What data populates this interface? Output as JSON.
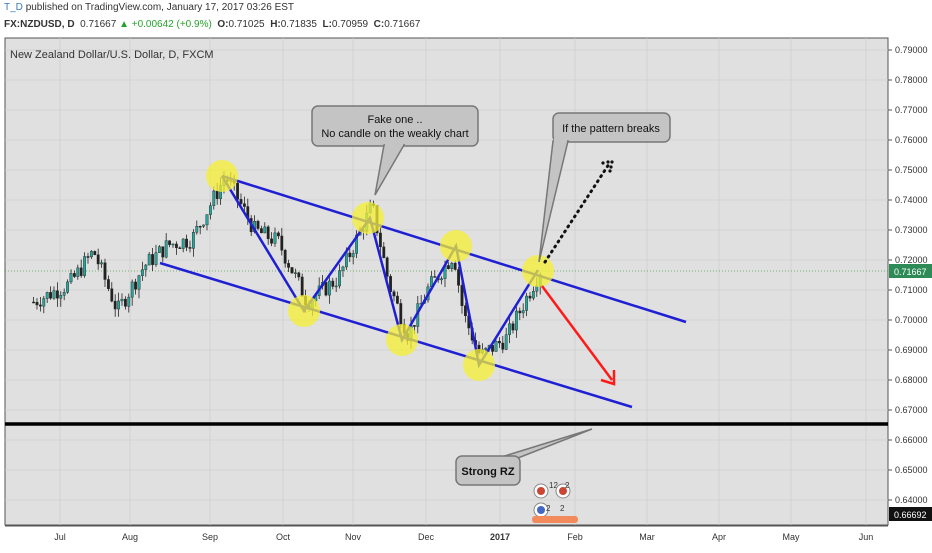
{
  "header": {
    "user": "T_D",
    "published_text": "published on TradingView.com, January 17, 2017 03:26 EST",
    "symbol": "FX:NZDUSD, D",
    "last": "0.71667",
    "change": "▲ +0.00642 (+0.9%)",
    "o_label": "O:",
    "o_val": "0.71025",
    "h_label": "H:",
    "h_val": "0.71835",
    "l_label": "L:",
    "l_val": "0.70959",
    "c_label": "C:",
    "c_val": "0.71667"
  },
  "chart": {
    "title": "New Zealand Dollar/U.S. Dollar, D, FXCM",
    "price_ticks": [
      "0.79000",
      "0.78000",
      "0.77000",
      "0.76000",
      "0.75000",
      "0.74000",
      "0.73000",
      "0.72000",
      "0.71000",
      "0.70000",
      "0.69000",
      "0.68000",
      "0.67000",
      "0.66000",
      "0.65000",
      "0.64000"
    ],
    "month_ticks": [
      "Jul",
      "Aug",
      "Sep",
      "Oct",
      "Nov",
      "Dec",
      "2017",
      "Feb",
      "Mar",
      "Apr",
      "May",
      "Jun"
    ],
    "current_price": "0.71667",
    "level_price": "0.66692",
    "callouts": {
      "fake_line1": "Fake one ..",
      "fake_line2": "No candle on the weakly chart",
      "breaks": "If the pattern breaks",
      "rz": "Strong RZ"
    },
    "event_badges": [
      "12",
      "2",
      "2",
      "2"
    ]
  },
  "colors": {
    "bull": "#26a69a",
    "bear": "#222222",
    "channel": "#1f1fd4",
    "highlight": "#f5f032",
    "arrow_down": "#ff1a1a",
    "last_price_bg": "#2e8b57"
  },
  "chart_data": {
    "type": "candlestick",
    "title": "New Zealand Dollar/U.S. Dollar, D, FXCM",
    "symbol": "NZDUSD",
    "timeframe": "D",
    "ylim": [
      0.636,
      0.795
    ],
    "x_range": [
      "2016-06",
      "2017-06"
    ],
    "close_path_approx": [
      {
        "x": "2016-06-20",
        "y": 0.706
      },
      {
        "x": "2016-07-05",
        "y": 0.712
      },
      {
        "x": "2016-07-15",
        "y": 0.723
      },
      {
        "x": "2016-07-25",
        "y": 0.703
      },
      {
        "x": "2016-08-05",
        "y": 0.718
      },
      {
        "x": "2016-08-15",
        "y": 0.725
      },
      {
        "x": "2016-08-25",
        "y": 0.727
      },
      {
        "x": "2016-09-08",
        "y": 0.748
      },
      {
        "x": "2016-09-20",
        "y": 0.73
      },
      {
        "x": "2016-09-30",
        "y": 0.726
      },
      {
        "x": "2016-10-12",
        "y": 0.706
      },
      {
        "x": "2016-10-25",
        "y": 0.714
      },
      {
        "x": "2016-11-08",
        "y": 0.738
      },
      {
        "x": "2016-11-15",
        "y": 0.712
      },
      {
        "x": "2016-11-23",
        "y": 0.695
      },
      {
        "x": "2016-12-01",
        "y": 0.71
      },
      {
        "x": "2016-12-12",
        "y": 0.722
      },
      {
        "x": "2016-12-16",
        "y": 0.702
      },
      {
        "x": "2016-12-23",
        "y": 0.688
      },
      {
        "x": "2017-01-03",
        "y": 0.694
      },
      {
        "x": "2017-01-17",
        "y": 0.71667
      }
    ],
    "annotations": [
      {
        "type": "channel_upper",
        "from": {
          "x": "2016-09-08",
          "y": 0.748
        },
        "to": {
          "x": "2017-03-20",
          "y": 0.7
        }
      },
      {
        "type": "channel_lower",
        "from": {
          "x": "2016-08-12",
          "y": 0.719
        },
        "to": {
          "x": "2017-03-08",
          "y": 0.671
        }
      },
      {
        "type": "horizontal",
        "y": 0.66692,
        "label": "Strong RZ"
      },
      {
        "type": "arrow_down",
        "from": {
          "x": "2017-01-20",
          "y": 0.712
        },
        "to": {
          "x": "2017-02-25",
          "y": 0.678
        }
      },
      {
        "type": "dotted_up",
        "from": {
          "x": "2017-01-20",
          "y": 0.718
        },
        "to": {
          "x": "2017-03-01",
          "y": 0.753
        }
      }
    ]
  }
}
